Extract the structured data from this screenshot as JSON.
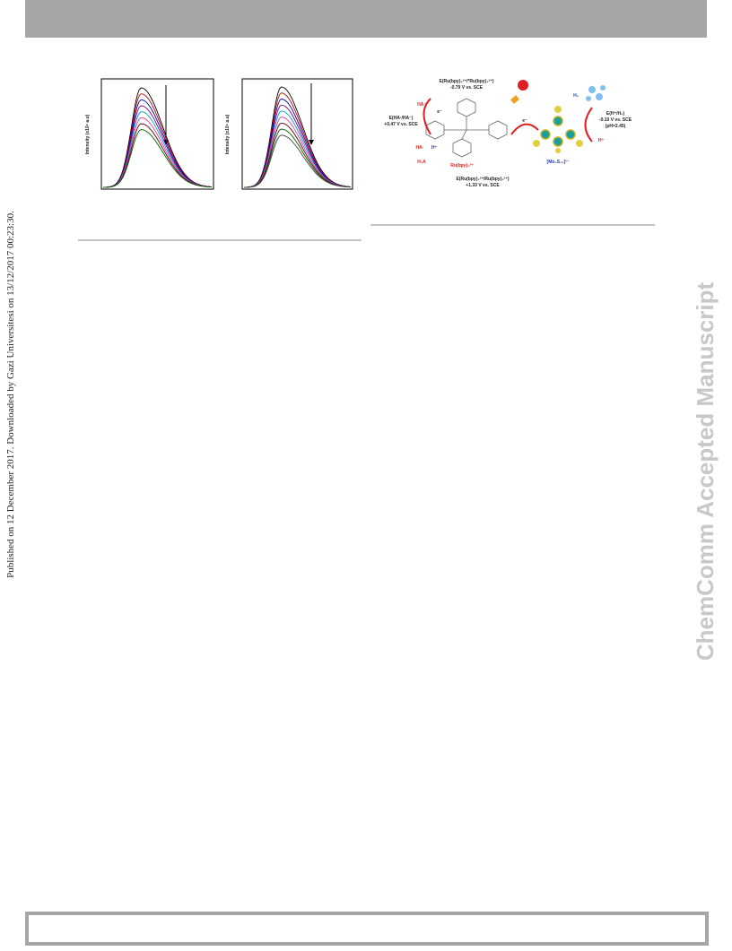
{
  "sidebar": {
    "left": "Published on 12 December 2017. Downloaded by Gazi Universitesi on 13/12/2017 00:23:30.",
    "right": "ChemComm Accepted Manuscript"
  },
  "figure": {
    "panels": [
      {
        "y_label": "Intensity (x10⁶ a.u)"
      },
      {
        "y_label": "Intensity (x10⁵ a.u)"
      }
    ]
  },
  "scheme": {
    "top_potential": "E(Ru(bpy)₃³⁺/*Ru(bpy)₃²⁺)",
    "top_value": "-0.79 V vs. SCE",
    "donor_anion": "HA⁻",
    "donor_potential": "E(HA·/HA⁻)",
    "donor_value": "+0.47 V vs. SCE",
    "radical": "HA·",
    "proton_left": "H⁺",
    "acid": "H₂A",
    "complex": "Ru(bpy)₃²⁺",
    "bottom_potential": "E(Ru(bpy)₃³⁺/Ru(bpy)₃²⁺)",
    "bottom_value": "+1.33 V vs. SCE",
    "electron_left": "e⁻",
    "electron_right": "e⁻",
    "catalyst": "[Mo₃S₁₃]²⁻",
    "hydrogen": "H₂",
    "h_potential": "E(H⁺/H₂)",
    "h_value": "-0.10 V vs. SCE",
    "h_ph": "(pH=2.45)",
    "proton_right": "H⁺"
  }
}
